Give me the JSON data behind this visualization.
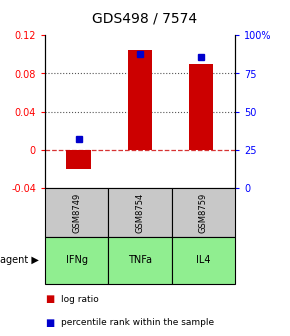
{
  "title": "GDS498 / 7574",
  "samples": [
    "GSM8749",
    "GSM8754",
    "GSM8759"
  ],
  "agents": [
    "IFNg",
    "TNFa",
    "IL4"
  ],
  "log_ratios": [
    -0.02,
    0.105,
    0.09
  ],
  "percentile_ranks": [
    0.32,
    0.88,
    0.86
  ],
  "ylim_left": [
    -0.04,
    0.12
  ],
  "ylim_right": [
    0.0,
    1.0
  ],
  "yticks_left": [
    -0.04,
    0.0,
    0.04,
    0.08,
    0.12
  ],
  "ytick_labels_left": [
    "-0.04",
    "0",
    "0.04",
    "0.08",
    "0.12"
  ],
  "ytick_vals_right": [
    0.0,
    0.25,
    0.5,
    0.75,
    1.0
  ],
  "ytick_labels_right": [
    "0",
    "25",
    "50",
    "75",
    "100%"
  ],
  "bar_color": "#cc0000",
  "point_color": "#0000cc",
  "sample_bg": "#c8c8c8",
  "agent_bg": "#90ee90",
  "dotted_line_color": "#555555",
  "zero_line_color": "#cc0000",
  "title_fontsize": 10,
  "tick_fontsize": 7,
  "sample_fontsize": 6,
  "agent_fontsize": 7,
  "legend_fontsize": 6.5,
  "agent_label_fontsize": 7
}
